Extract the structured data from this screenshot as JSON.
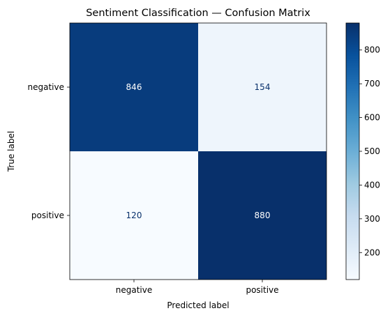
{
  "chart_data": {
    "type": "heatmap",
    "title": "Sentiment Classification — Confusion Matrix",
    "xlabel": "Predicted label",
    "ylabel": "True label",
    "x_categories": [
      "negative",
      "positive"
    ],
    "y_categories": [
      "negative",
      "positive"
    ],
    "values": [
      [
        846,
        154
      ],
      [
        120,
        880
      ]
    ],
    "colormap": "Blues",
    "colorbar": {
      "range": [
        120,
        880
      ],
      "ticks": [
        200,
        300,
        400,
        500,
        600,
        700,
        800
      ]
    },
    "colors": {
      "low": "#f7fbff",
      "high": "#08306b",
      "text_on_dark": "#ffffff",
      "text_on_light": "#08306b"
    }
  }
}
